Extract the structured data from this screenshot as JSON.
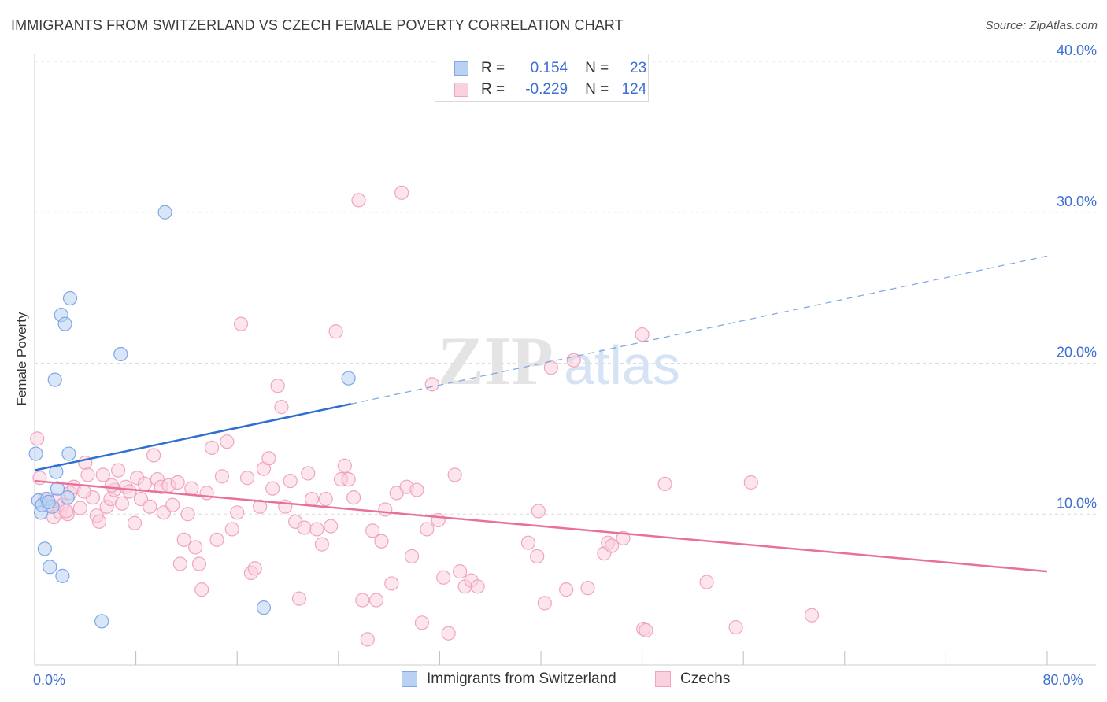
{
  "title": "IMMIGRANTS FROM SWITZERLAND VS CZECH FEMALE POVERTY CORRELATION CHART",
  "source": "Source: ZipAtlas.com",
  "watermark": {
    "zip": "ZIP",
    "atlas": "atlas"
  },
  "legend": {
    "rows": [
      {
        "r_label": "R =",
        "r_value": "0.154",
        "n_label": "N =",
        "n_value": "23"
      },
      {
        "r_label": "R =",
        "r_value": "-0.229",
        "n_label": "N =",
        "n_value": "124"
      }
    ]
  },
  "bottom_legend": {
    "series1": "Immigrants from Switzerland",
    "series2": "Czechs"
  },
  "chart_data": {
    "type": "scatter",
    "title": "IMMIGRANTS FROM SWITZERLAND VS CZECH FEMALE POVERTY CORRELATION CHART",
    "xlabel": "",
    "ylabel": "Female Poverty",
    "xlim": [
      0,
      80
    ],
    "ylim": [
      0,
      40
    ],
    "x_ticks": [
      {
        "value": 0,
        "label": "0.0%"
      },
      {
        "value": 80,
        "label": "80.0%"
      }
    ],
    "y_ticks": [
      {
        "value": 10,
        "label": "10.0%"
      },
      {
        "value": 20,
        "label": "20.0%"
      },
      {
        "value": 30,
        "label": "30.0%"
      },
      {
        "value": 40,
        "label": "40.0%"
      }
    ],
    "series": [
      {
        "name": "Immigrants from Switzerland",
        "color": "#7fa8e6",
        "fill": "#b9d1f2",
        "line_color": "#2f6fd0",
        "trend": {
          "x0": 0,
          "y0": 12.9,
          "x1": 25.0,
          "y1": 17.3,
          "x_dash_end": 80,
          "y_dash_end": 27.1
        },
        "points": [
          [
            0.1,
            14.0
          ],
          [
            0.3,
            10.9
          ],
          [
            0.5,
            10.1
          ],
          [
            0.6,
            10.6
          ],
          [
            0.8,
            7.7
          ],
          [
            1.0,
            11.0
          ],
          [
            1.2,
            6.5
          ],
          [
            1.4,
            10.5
          ],
          [
            1.6,
            18.9
          ],
          [
            1.7,
            12.8
          ],
          [
            1.8,
            11.7
          ],
          [
            2.1,
            23.2
          ],
          [
            2.2,
            5.9
          ],
          [
            2.4,
            22.6
          ],
          [
            2.6,
            11.1
          ],
          [
            2.7,
            14.0
          ],
          [
            2.8,
            24.3
          ],
          [
            5.3,
            2.9
          ],
          [
            6.8,
            20.6
          ],
          [
            10.3,
            30.0
          ],
          [
            18.1,
            3.8
          ],
          [
            24.8,
            19.0
          ],
          [
            1.1,
            10.8
          ]
        ]
      },
      {
        "name": "Czechs",
        "color": "#f0a5bf",
        "fill": "#f9d0dd",
        "line_color": "#e8709a",
        "trend": {
          "x0": 0,
          "y0": 12.2,
          "x1": 80,
          "y1": 6.2
        },
        "points": [
          [
            0.4,
            12.4
          ],
          [
            0.8,
            11.0
          ],
          [
            1.1,
            10.6
          ],
          [
            1.5,
            9.8
          ],
          [
            1.7,
            10.9
          ],
          [
            2.0,
            10.1
          ],
          [
            2.2,
            10.6
          ],
          [
            2.6,
            10.0
          ],
          [
            2.8,
            11.4
          ],
          [
            3.1,
            11.8
          ],
          [
            3.6,
            10.4
          ],
          [
            4.0,
            13.4
          ],
          [
            4.2,
            12.6
          ],
          [
            4.6,
            11.1
          ],
          [
            4.9,
            9.9
          ],
          [
            5.1,
            9.5
          ],
          [
            5.4,
            12.6
          ],
          [
            5.7,
            10.5
          ],
          [
            6.0,
            11.0
          ],
          [
            6.3,
            11.6
          ],
          [
            6.6,
            12.9
          ],
          [
            6.9,
            10.7
          ],
          [
            7.2,
            11.8
          ],
          [
            7.5,
            11.5
          ],
          [
            7.9,
            9.4
          ],
          [
            8.1,
            12.4
          ],
          [
            8.4,
            11.0
          ],
          [
            8.7,
            12.0
          ],
          [
            9.1,
            10.5
          ],
          [
            9.4,
            13.9
          ],
          [
            9.7,
            12.3
          ],
          [
            10.0,
            11.8
          ],
          [
            10.2,
            10.1
          ],
          [
            10.6,
            11.9
          ],
          [
            10.9,
            10.6
          ],
          [
            11.3,
            12.1
          ],
          [
            11.5,
            6.7
          ],
          [
            11.8,
            8.3
          ],
          [
            12.1,
            10.0
          ],
          [
            12.4,
            11.7
          ],
          [
            12.7,
            7.8
          ],
          [
            13.0,
            6.7
          ],
          [
            13.2,
            5.0
          ],
          [
            13.6,
            11.4
          ],
          [
            14.0,
            14.4
          ],
          [
            14.4,
            8.3
          ],
          [
            14.8,
            12.5
          ],
          [
            15.2,
            14.8
          ],
          [
            15.6,
            9.0
          ],
          [
            16.0,
            10.1
          ],
          [
            16.3,
            22.6
          ],
          [
            16.8,
            12.4
          ],
          [
            17.1,
            6.1
          ],
          [
            17.4,
            6.4
          ],
          [
            17.8,
            10.5
          ],
          [
            18.1,
            13.0
          ],
          [
            18.5,
            13.7
          ],
          [
            18.8,
            11.7
          ],
          [
            19.2,
            18.5
          ],
          [
            19.5,
            17.1
          ],
          [
            19.8,
            10.5
          ],
          [
            20.2,
            12.2
          ],
          [
            20.6,
            9.5
          ],
          [
            20.9,
            4.4
          ],
          [
            21.3,
            9.1
          ],
          [
            21.6,
            12.7
          ],
          [
            21.9,
            11.0
          ],
          [
            22.3,
            9.0
          ],
          [
            22.7,
            8.0
          ],
          [
            23.0,
            11.0
          ],
          [
            23.4,
            9.2
          ],
          [
            23.8,
            22.1
          ],
          [
            24.2,
            12.3
          ],
          [
            24.5,
            13.2
          ],
          [
            24.8,
            12.3
          ],
          [
            25.2,
            11.1
          ],
          [
            25.6,
            30.8
          ],
          [
            25.9,
            4.3
          ],
          [
            26.3,
            1.7
          ],
          [
            26.7,
            8.9
          ],
          [
            27.0,
            4.3
          ],
          [
            27.4,
            8.2
          ],
          [
            27.7,
            10.3
          ],
          [
            28.2,
            5.4
          ],
          [
            28.6,
            11.4
          ],
          [
            29.0,
            31.3
          ],
          [
            29.4,
            11.8
          ],
          [
            29.8,
            7.2
          ],
          [
            30.2,
            11.6
          ],
          [
            30.6,
            2.8
          ],
          [
            31.0,
            9.0
          ],
          [
            31.4,
            18.6
          ],
          [
            31.9,
            9.6
          ],
          [
            32.3,
            5.8
          ],
          [
            32.7,
            2.1
          ],
          [
            33.2,
            12.6
          ],
          [
            33.6,
            6.2
          ],
          [
            34.0,
            5.2
          ],
          [
            34.5,
            5.6
          ],
          [
            35.0,
            5.2
          ],
          [
            39.0,
            8.1
          ],
          [
            39.7,
            7.2
          ],
          [
            39.8,
            10.2
          ],
          [
            40.3,
            4.1
          ],
          [
            40.8,
            19.7
          ],
          [
            42.0,
            5.0
          ],
          [
            42.6,
            20.2
          ],
          [
            43.7,
            5.1
          ],
          [
            45.0,
            7.4
          ],
          [
            45.3,
            8.1
          ],
          [
            45.6,
            7.9
          ],
          [
            46.5,
            8.4
          ],
          [
            48.0,
            21.9
          ],
          [
            48.1,
            2.4
          ],
          [
            48.3,
            2.3
          ],
          [
            49.8,
            12.0
          ],
          [
            53.1,
            5.5
          ],
          [
            55.4,
            2.5
          ],
          [
            56.6,
            12.1
          ],
          [
            61.4,
            3.3
          ],
          [
            0.2,
            15.0
          ],
          [
            2.5,
            10.2
          ],
          [
            6.1,
            11.9
          ],
          [
            3.9,
            11.5
          ]
        ]
      }
    ]
  }
}
